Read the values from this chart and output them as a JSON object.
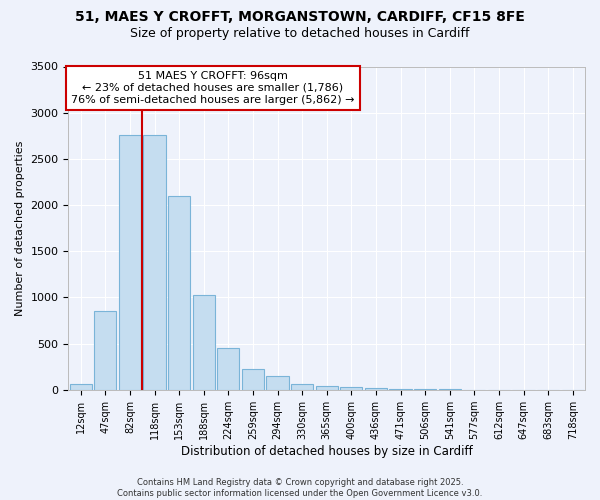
{
  "title_line1": "51, MAES Y CROFFT, MORGANSTOWN, CARDIFF, CF15 8FE",
  "title_line2": "Size of property relative to detached houses in Cardiff",
  "xlabel": "Distribution of detached houses by size in Cardiff",
  "ylabel": "Number of detached properties",
  "bar_labels": [
    "12sqm",
    "47sqm",
    "82sqm",
    "118sqm",
    "153sqm",
    "188sqm",
    "224sqm",
    "259sqm",
    "294sqm",
    "330sqm",
    "365sqm",
    "400sqm",
    "436sqm",
    "471sqm",
    "506sqm",
    "541sqm",
    "577sqm",
    "612sqm",
    "647sqm",
    "683sqm",
    "718sqm"
  ],
  "bar_values": [
    60,
    850,
    2760,
    2760,
    2100,
    1030,
    450,
    220,
    150,
    60,
    40,
    30,
    20,
    10,
    5,
    5,
    2,
    2,
    2,
    2,
    2
  ],
  "bar_color": "#c5ddf0",
  "bar_edgecolor": "#7ab4d8",
  "vline_color": "#cc0000",
  "annotation_text": "51 MAES Y CROFFT: 96sqm\n← 23% of detached houses are smaller (1,786)\n76% of semi-detached houses are larger (5,862) →",
  "annotation_box_facecolor": "#ffffff",
  "annotation_box_edgecolor": "#cc0000",
  "ylim": [
    0,
    3500
  ],
  "yticks": [
    0,
    500,
    1000,
    1500,
    2000,
    2500,
    3000,
    3500
  ],
  "background_color": "#eef2fb",
  "grid_color": "#ffffff",
  "footer_line1": "Contains HM Land Registry data © Crown copyright and database right 2025.",
  "footer_line2": "Contains public sector information licensed under the Open Government Licence v3.0."
}
